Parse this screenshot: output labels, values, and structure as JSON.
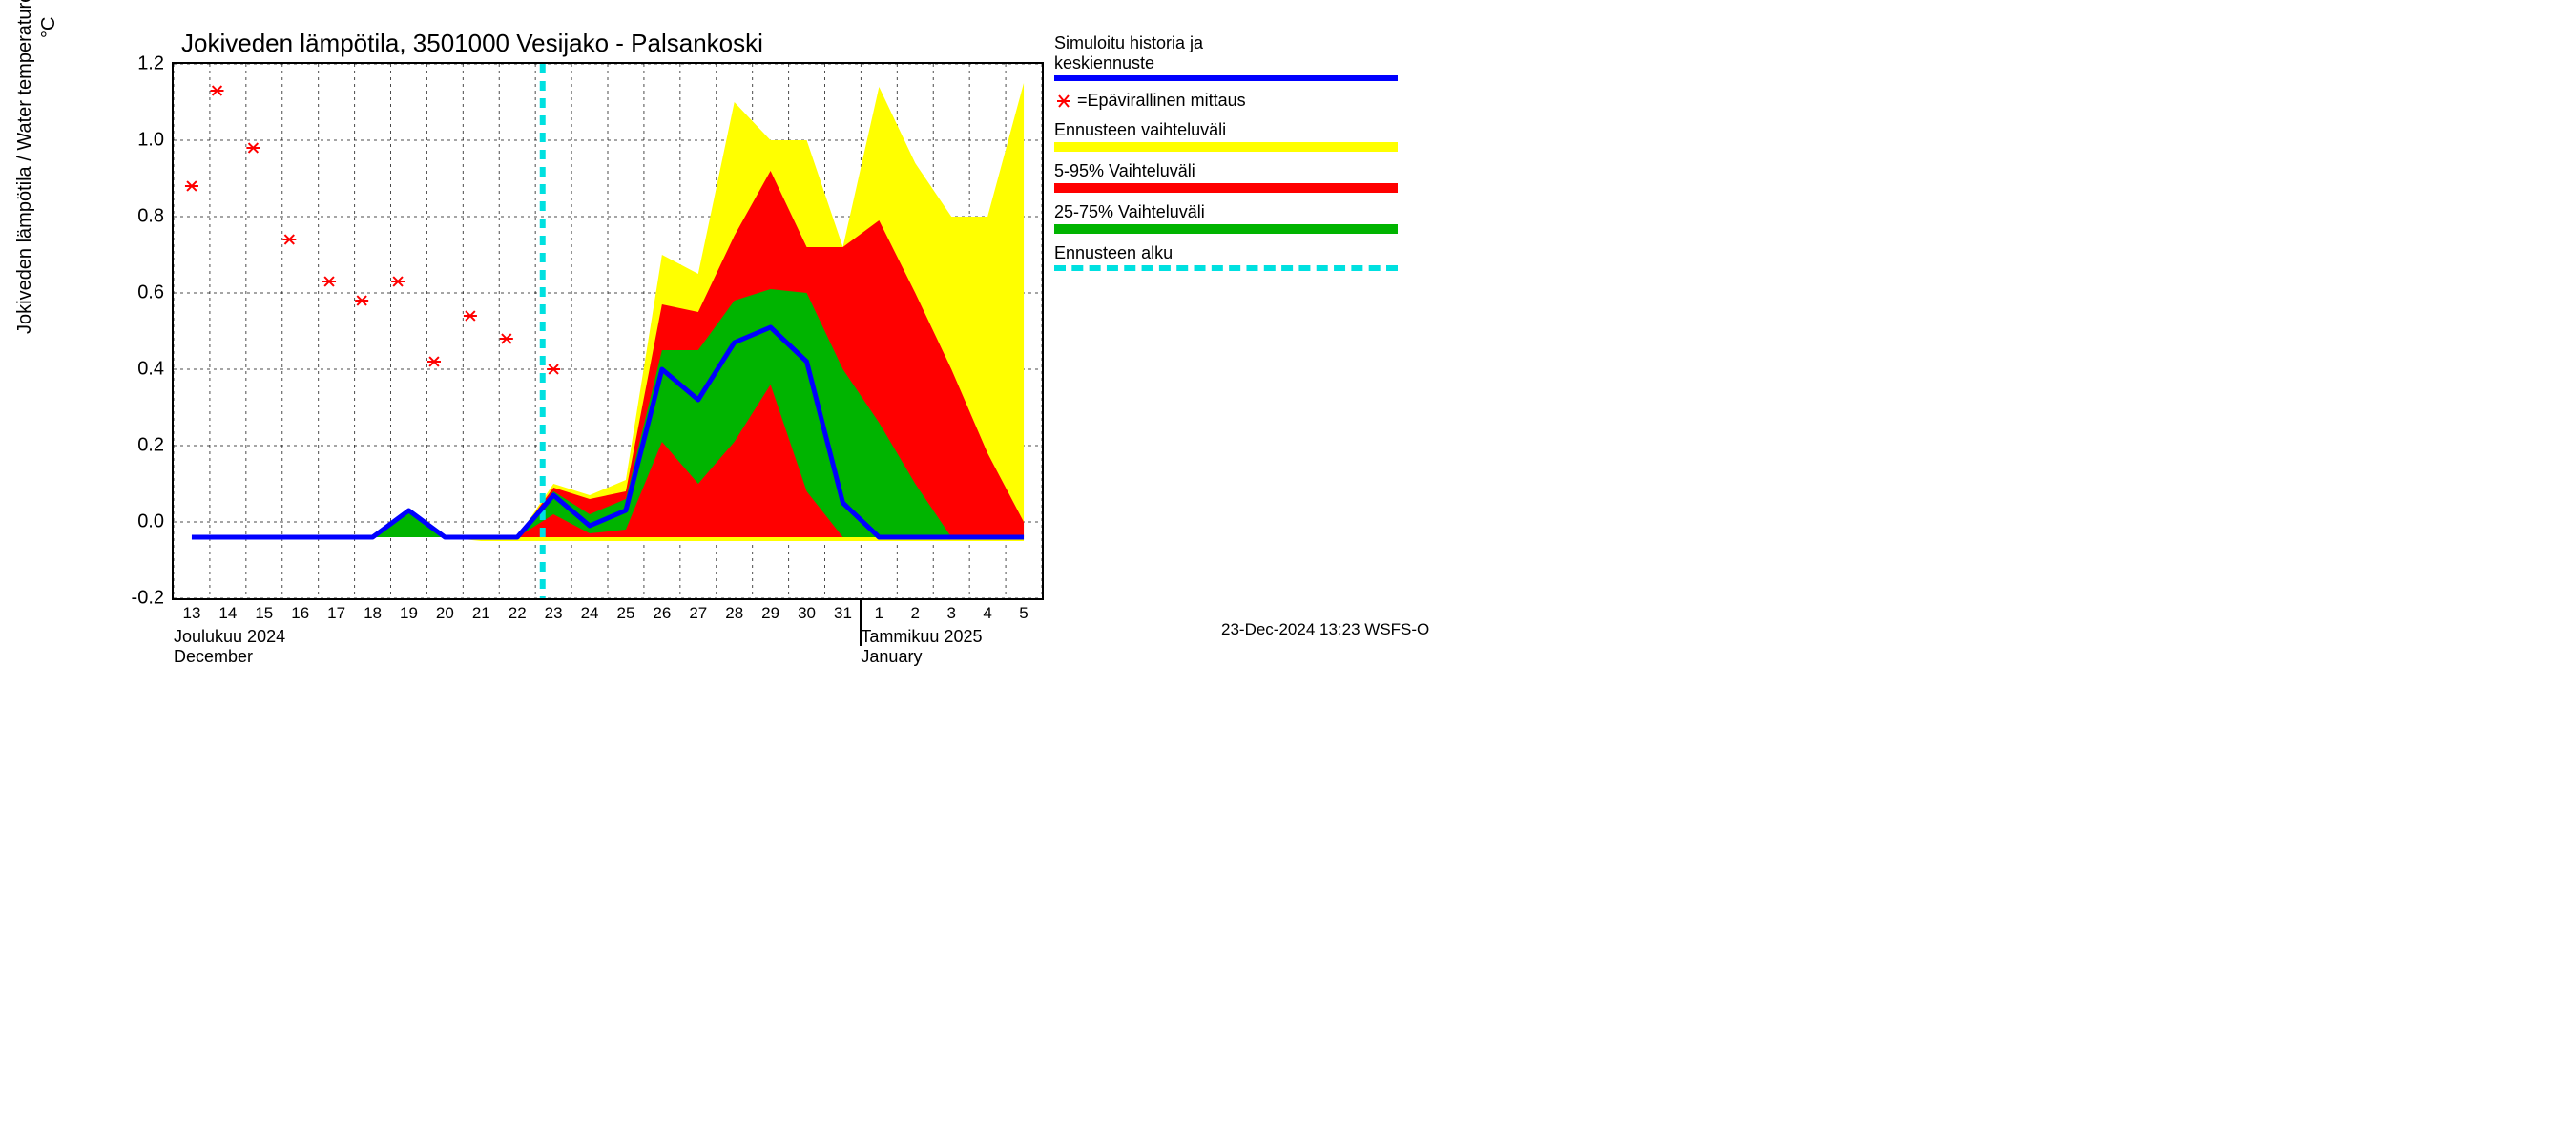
{
  "chart": {
    "type": "line-area-forecast",
    "title": "Jokiveden lämpötila, 3501000 Vesijako - Palsankoski",
    "y_axis_title": "Jokiveden lämpötila / Water temperature",
    "y_unit": "°C",
    "footer_timestamp": "23-Dec-2024 13:23 WSFS-O",
    "background_color": "#ffffff",
    "axis_color": "#000000",
    "grid_color": "#000000",
    "grid_dash": "3,4",
    "colors": {
      "history_line": "#0000ff",
      "measurement_marker": "#ff0000",
      "band_full": "#ffff00",
      "band_5_95": "#ff0000",
      "band_25_75": "#00b400",
      "forecast_start": "#00e0e0"
    },
    "ylim": [
      -0.2,
      1.2
    ],
    "yticks": [
      -0.2,
      0.0,
      0.2,
      0.4,
      0.6,
      0.8,
      1.0,
      1.2
    ],
    "ytick_labels": [
      "-0.2",
      "0.0",
      "0.2",
      "0.4",
      "0.6",
      "0.8",
      "1.0",
      "1.2"
    ],
    "x_categories": [
      "13",
      "14",
      "15",
      "16",
      "17",
      "18",
      "19",
      "20",
      "21",
      "22",
      "23",
      "24",
      "25",
      "26",
      "27",
      "28",
      "29",
      "30",
      "31",
      "1",
      "2",
      "3",
      "4",
      "5"
    ],
    "x_month_labels": [
      {
        "top": "Joulukuu  2024",
        "bottom": "December",
        "at_index": 0
      },
      {
        "top": "Tammikuu  2025",
        "bottom": "January",
        "at_index": 19
      }
    ],
    "forecast_start_index": 9.7,
    "history_line_values": [
      -0.04,
      -0.04,
      -0.04,
      -0.04,
      -0.04,
      -0.04,
      0.03,
      -0.04,
      -0.04,
      -0.04,
      0.07,
      -0.01,
      0.03,
      0.4,
      0.32,
      0.47,
      0.51,
      0.42,
      0.05,
      -0.04,
      -0.04,
      -0.04,
      -0.04,
      -0.04
    ],
    "measurements": [
      {
        "x": 0.0,
        "y": 0.88
      },
      {
        "x": 0.7,
        "y": 1.13
      },
      {
        "x": 1.7,
        "y": 0.98
      },
      {
        "x": 2.7,
        "y": 0.74
      },
      {
        "x": 3.8,
        "y": 0.63
      },
      {
        "x": 4.7,
        "y": 0.58
      },
      {
        "x": 5.7,
        "y": 0.63
      },
      {
        "x": 6.7,
        "y": 0.42
      },
      {
        "x": 7.7,
        "y": 0.54
      },
      {
        "x": 8.7,
        "y": 0.48
      },
      {
        "x": 10.0,
        "y": 0.4
      }
    ],
    "band_full": {
      "lower": [
        -0.04,
        -0.04,
        -0.04,
        -0.04,
        -0.04,
        -0.04,
        -0.04,
        -0.04,
        -0.05,
        -0.05,
        -0.05,
        -0.05,
        -0.05,
        -0.05,
        -0.05,
        -0.05,
        -0.05,
        -0.05,
        -0.05,
        -0.05,
        -0.05,
        -0.05,
        -0.05,
        -0.05
      ],
      "upper": [
        -0.04,
        -0.04,
        -0.04,
        -0.04,
        -0.04,
        -0.04,
        0.03,
        -0.04,
        -0.04,
        -0.04,
        0.1,
        0.07,
        0.11,
        0.7,
        0.65,
        1.1,
        1.0,
        1.0,
        0.72,
        1.14,
        0.94,
        0.8,
        0.8,
        1.15
      ]
    },
    "band_5_95": {
      "lower": [
        -0.04,
        -0.04,
        -0.04,
        -0.04,
        -0.04,
        -0.04,
        -0.04,
        -0.04,
        -0.04,
        -0.04,
        -0.04,
        -0.04,
        -0.04,
        -0.04,
        -0.04,
        -0.04,
        -0.04,
        -0.04,
        -0.04,
        -0.04,
        -0.04,
        -0.04,
        -0.04,
        -0.04
      ],
      "upper": [
        -0.04,
        -0.04,
        -0.04,
        -0.04,
        -0.04,
        -0.04,
        0.03,
        -0.04,
        -0.04,
        -0.04,
        0.09,
        0.06,
        0.08,
        0.57,
        0.55,
        0.75,
        0.92,
        0.72,
        0.72,
        0.79,
        0.6,
        0.4,
        0.18,
        0.0
      ]
    },
    "band_25_75": {
      "lower": [
        -0.04,
        -0.04,
        -0.04,
        -0.04,
        -0.04,
        -0.04,
        -0.04,
        -0.04,
        -0.04,
        -0.04,
        0.02,
        -0.03,
        -0.02,
        0.21,
        0.1,
        0.21,
        0.36,
        0.08,
        -0.04,
        -0.04,
        -0.04,
        -0.04,
        -0.04,
        -0.04
      ],
      "upper": [
        -0.04,
        -0.04,
        -0.04,
        -0.04,
        -0.04,
        -0.04,
        0.03,
        -0.04,
        -0.04,
        -0.04,
        0.08,
        0.02,
        0.06,
        0.45,
        0.45,
        0.58,
        0.61,
        0.6,
        0.4,
        0.26,
        0.1,
        -0.04,
        -0.04,
        -0.04
      ]
    }
  },
  "legend": {
    "history": {
      "line1": "Simuloitu historia ja",
      "line2": "keskiennuste"
    },
    "measurement": "=Epävirallinen mittaus",
    "band_full": "Ennusteen vaihteluväli",
    "band_5_95": "5-95% Vaihteluväli",
    "band_25_75": "25-75% Vaihteluväli",
    "forecast_start": "Ennusteen alku"
  }
}
